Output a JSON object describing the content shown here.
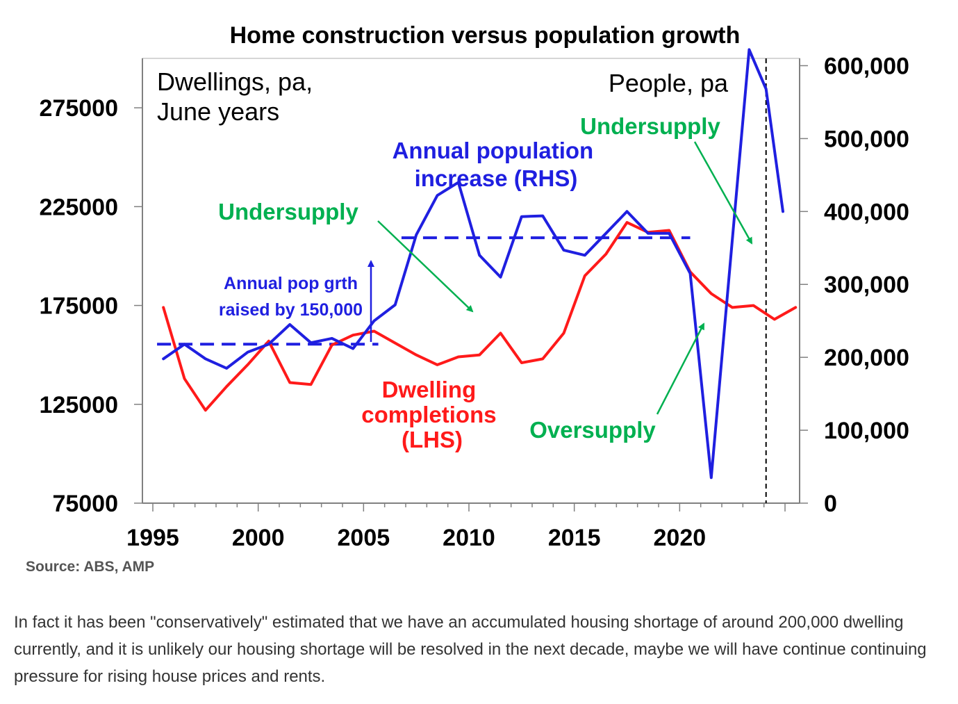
{
  "chart_data": {
    "type": "line",
    "title": "Home construction versus population growth",
    "corner_left": [
      "Dwellings, pa,",
      "June years"
    ],
    "corner_right": "People, pa",
    "x_ticks": [
      "1995",
      "2000",
      "2005",
      "2010",
      "2015",
      "2020"
    ],
    "xlim": [
      1995,
      2026
    ],
    "y_left_ticks": [
      "75000",
      "125000",
      "175000",
      "225000",
      "275000"
    ],
    "y_left_lim": [
      75000,
      300000
    ],
    "y_right_ticks": [
      "0",
      "100,000",
      "200,000",
      "300,000",
      "400,000",
      "500,000",
      "600,000"
    ],
    "y_right_lim": [
      0,
      610000
    ],
    "grid": false,
    "series": [
      {
        "name": "Dwelling completions (LHS)",
        "axis": "left",
        "color": "#ff1a1a",
        "x": [
          1995.5,
          1996.5,
          1997.5,
          1998.5,
          1999.5,
          2000.5,
          2001.5,
          2002.5,
          2003.5,
          2004.5,
          2005.5,
          2006.5,
          2007.5,
          2008.5,
          2009.5,
          2010.5,
          2011.5,
          2012.5,
          2013.5,
          2014.5,
          2015.5,
          2016.5,
          2017.5,
          2018.5,
          2019.5,
          2020.5,
          2021.5,
          2022.5,
          2023.5,
          2024.5,
          2025.5
        ],
        "values": [
          174000,
          138000,
          122000,
          134000,
          145000,
          157000,
          136000,
          135000,
          155000,
          160000,
          162000,
          156000,
          150000,
          145000,
          149000,
          150000,
          161000,
          146000,
          148000,
          161000,
          190000,
          201000,
          217000,
          212000,
          213000,
          192000,
          181000,
          174000,
          175000,
          168000,
          174000
        ]
      },
      {
        "name": "Annual population increase (RHS)",
        "axis": "right",
        "color": "#1f1fe0",
        "x": [
          1995.5,
          1996.5,
          1997.5,
          1998.5,
          1999.5,
          2000.5,
          2001.5,
          2002.5,
          2003.5,
          2004.5,
          2005.5,
          2006.5,
          2007.5,
          2008.5,
          2009.5,
          2010.5,
          2011.5,
          2012.5,
          2013.5,
          2014.5,
          2015.5,
          2016.5,
          2017.5,
          2018.5,
          2019.5,
          2020.5,
          2021.5,
          2023.3,
          2024.1,
          2024.9
        ],
        "values": [
          198000,
          218000,
          198000,
          185000,
          207000,
          218000,
          245000,
          220000,
          226000,
          212000,
          250000,
          272000,
          368000,
          422000,
          440000,
          340000,
          310000,
          393000,
          394000,
          347000,
          340000,
          370000,
          400000,
          370000,
          370000,
          315000,
          35000,
          622000,
          568000,
          400000
        ]
      }
    ],
    "reference_lines": [
      {
        "axis": "right",
        "value": 218000,
        "x_range": [
          1995.2,
          2005.7
        ],
        "style": "dashed",
        "color": "#1f1fe0"
      },
      {
        "axis": "right",
        "value": 364000,
        "x_range": [
          2006.8,
          2020.5
        ],
        "style": "dashed",
        "color": "#1f1fe0"
      },
      {
        "axis": "x",
        "value": 2024.1,
        "style": "dashed",
        "color": "#000000"
      }
    ],
    "annotations": {
      "population_label": [
        "Annual population",
        "increase (RHS)"
      ],
      "dwelling_label": [
        "Dwelling",
        "completions",
        "(LHS)"
      ],
      "pop_growth_label": [
        "Annual pop grth",
        "raised by 150,000"
      ],
      "undersupply_1": "Undersupply",
      "undersupply_2": "Undersupply",
      "oversupply": "Oversupply"
    }
  },
  "source": "Source: ABS, AMP",
  "paragraph": "In fact it has been \"conservatively\" estimated that we have an accumulated housing shortage of around 200,000 dwelling currently, and it is unlikely our housing shortage will be resolved in the next decade, maybe we will have continue continuing pressure for rising house prices and rents."
}
